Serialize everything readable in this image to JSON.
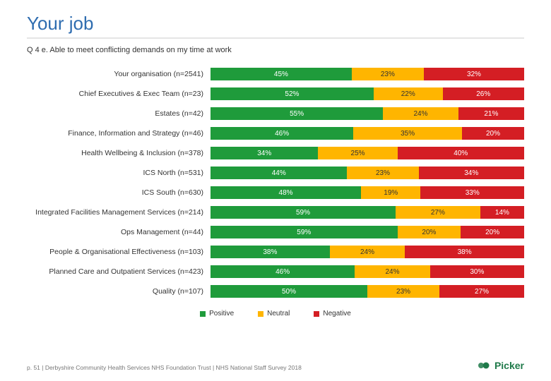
{
  "title": "Your job",
  "title_color": "#2f6db0",
  "rule_color": "#e5e5e5",
  "subtitle": "Q 4 e. Able to meet conflicting demands on my time at work",
  "colors": {
    "positive": "#1f9b3b",
    "neutral": "#ffb500",
    "negative": "#d41e24"
  },
  "legend": {
    "positive": "Positive",
    "neutral": "Neutral",
    "negative": "Negative"
  },
  "rows": [
    {
      "label": "Your organisation (n=2541)",
      "pos": 45,
      "neu": 23,
      "neg": 32
    },
    {
      "label": "Chief Executives & Exec Team (n=23)",
      "pos": 52,
      "neu": 22,
      "neg": 26
    },
    {
      "label": "Estates (n=42)",
      "pos": 55,
      "neu": 24,
      "neg": 21
    },
    {
      "label": "Finance, Information and Strategy (n=46)",
      "pos": 46,
      "neu": 35,
      "neg": 20
    },
    {
      "label": "Health Wellbeing & Inclusion (n=378)",
      "pos": 34,
      "neu": 25,
      "neg": 40
    },
    {
      "label": "ICS North (n=531)",
      "pos": 44,
      "neu": 23,
      "neg": 34
    },
    {
      "label": "ICS South (n=630)",
      "pos": 48,
      "neu": 19,
      "neg": 33
    },
    {
      "label": "Integrated Facilities Management Services (n=214)",
      "pos": 59,
      "neu": 27,
      "neg": 14
    },
    {
      "label": "Ops Management (n=44)",
      "pos": 59,
      "neu": 20,
      "neg": 20
    },
    {
      "label": "People & Organisational Effectiveness (n=103)",
      "pos": 38,
      "neu": 24,
      "neg": 38
    },
    {
      "label": "Planned Care and Outpatient Services (n=423)",
      "pos": 46,
      "neu": 24,
      "neg": 30
    },
    {
      "label": "Quality (n=107)",
      "pos": 50,
      "neu": 23,
      "neg": 27
    }
  ],
  "footer": "p. 51 | Derbyshire Community Health Services NHS Foundation Trust | NHS National Staff Survey 2018",
  "logo": {
    "word": "Picker",
    "color": "#1f7a4a"
  }
}
